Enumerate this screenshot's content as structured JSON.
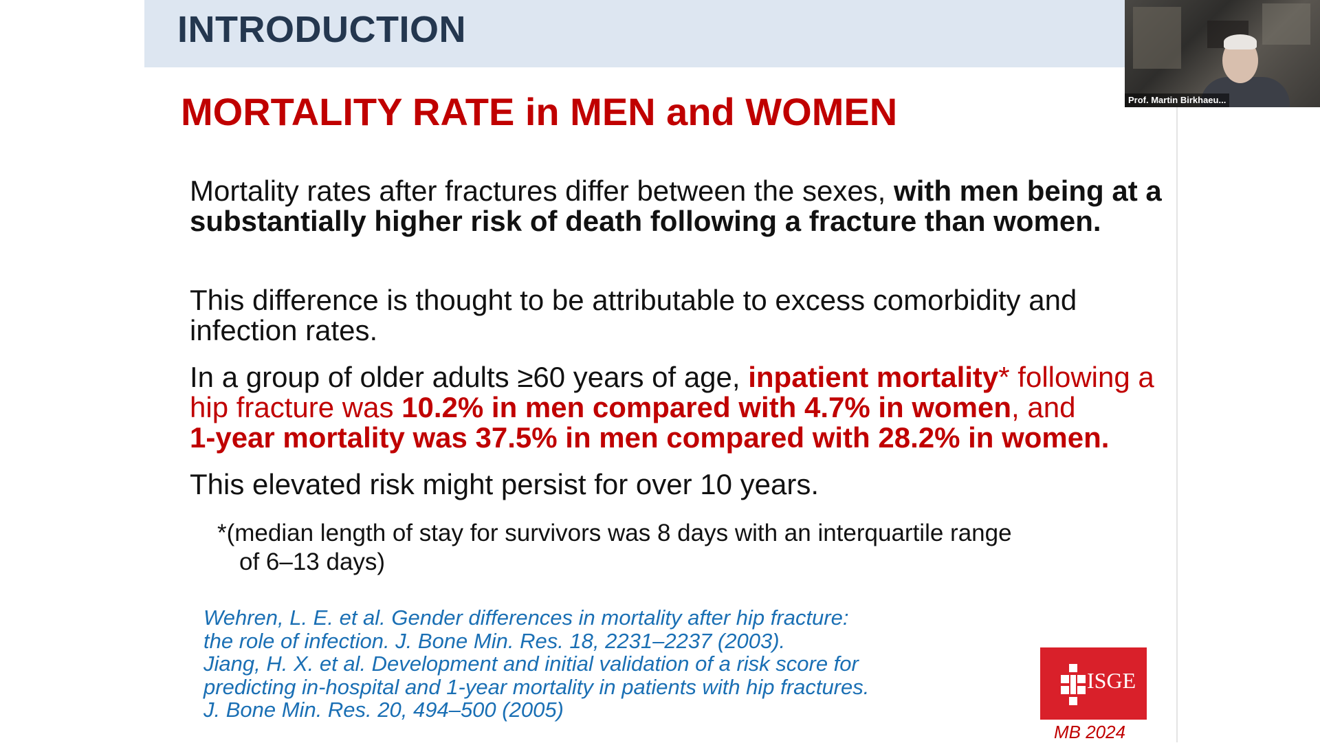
{
  "header": {
    "title": "INTRODUCTION"
  },
  "slide": {
    "title": "MORTALITY RATE in MEN and WOMEN",
    "p1": {
      "normal": "Mortality rates after fractures differ between the sexes, ",
      "bold": "with men being at a substantially higher risk of death following a fracture than women."
    },
    "p2": "This difference is thought to be attributable to excess comorbidity and infection rates.",
    "p3": {
      "normal": "In a group of older adults ≥60 years of age, ",
      "red_bold_1": "inpatient mortality",
      "red_1": "* following a hip fracture was ",
      "red_bold_2": "10.2% in men compared with 4.7% in women",
      "red_2": ", and",
      "red_bold_3": "1-year mortality was 37.5% in men compared with 28.2% in women."
    },
    "p4": "This elevated risk might persist for over 10 years.",
    "footnote": {
      "line1": "*(median length of stay for survivors was 8 days with an interquartile range",
      "line2": "of 6–13 days)"
    },
    "references": [
      "Wehren, L. E. et al. Gender differences in mortality after hip fracture:",
      "the role of infection. J. Bone Min. Res. 18, 2231–2237 (2003).",
      "Jiang, H. X. et al. Development and initial validation of a risk score for",
      "predicting in-hospital and 1-year mortality in patients with hip fractures.",
      "J. Bone Min. Res. 20, 494–500 (2005)"
    ],
    "logo_text": "ISGE",
    "year_label": "MB 2024"
  },
  "video": {
    "participant_name": "Prof. Martin Birkhaeu..."
  },
  "colors": {
    "accent_red": "#c00000",
    "header_band": "#dde6f1",
    "header_text": "#24374f",
    "reference_blue": "#1a6fb4",
    "logo_red": "#d9202a"
  }
}
